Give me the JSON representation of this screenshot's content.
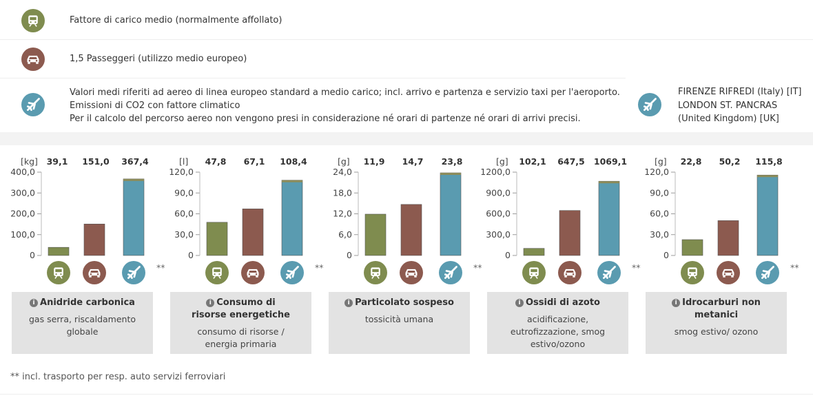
{
  "colors": {
    "train": "#7f8c4f",
    "car": "#8c5a4f",
    "plane": "#5a9bb0",
    "plane_cap": "#8c8c5a"
  },
  "legend": [
    {
      "icon": "train-icon",
      "lines": [
        "Fattore di carico medio (normalmente affollato)"
      ]
    },
    {
      "icon": "car-icon",
      "lines": [
        "1,5 Passeggeri (utilizzo medio europeo)"
      ]
    },
    {
      "icon": "plane-icon",
      "lines": [
        "Valori medi riferiti ad aereo di linea europeo standard a medio carico; incl. arrivo e partenza e servizio taxi per l'aeroporto.",
        "Emissioni di CO2 con fattore climatico",
        "Per il calcolo del percorso aereo non vengono presi in considerazione né orari di partenze né orari di arrivi precisi."
      ]
    }
  ],
  "route": {
    "icon": "plane-icon",
    "lines": [
      "FIRENZE RIFREDI (Italy) [IT]",
      "LONDON ST. PANCRAS",
      "(United Kingdom) [UK]"
    ]
  },
  "double_star": "**",
  "info_icon": "i",
  "chart_data": [
    {
      "type": "bar",
      "unit": "[kg]",
      "categories": [
        "Treno",
        "Auto",
        "Aereo"
      ],
      "values": [
        39.1,
        151.0,
        367.4
      ],
      "value_labels": [
        "39,1",
        "151,0",
        "367,4"
      ],
      "yticks": [
        "0",
        "100,0",
        "200,0",
        "300,0",
        "400,0"
      ],
      "ylim": [
        0,
        400
      ],
      "title": "Anidride carbonica",
      "subtitle": "gas serra, riscaldamento globale"
    },
    {
      "type": "bar",
      "unit": "[l]",
      "categories": [
        "Treno",
        "Auto",
        "Aereo"
      ],
      "values": [
        47.8,
        67.1,
        108.4
      ],
      "value_labels": [
        "47,8",
        "67,1",
        "108,4"
      ],
      "yticks": [
        "0",
        "30,0",
        "60,0",
        "90,0",
        "120,0"
      ],
      "ylim": [
        0,
        120
      ],
      "title": "Consumo di risorse energetiche",
      "subtitle": "consumo di risorse / energia primaria"
    },
    {
      "type": "bar",
      "unit": "[g]",
      "categories": [
        "Treno",
        "Auto",
        "Aereo"
      ],
      "values": [
        11.9,
        14.7,
        23.8
      ],
      "value_labels": [
        "11,9",
        "14,7",
        "23,8"
      ],
      "yticks": [
        "0",
        "6,0",
        "12,0",
        "18,0",
        "24,0"
      ],
      "ylim": [
        0,
        24
      ],
      "title": "Particolato sospeso",
      "subtitle": "tossicità umana"
    },
    {
      "type": "bar",
      "unit": "[g]",
      "categories": [
        "Treno",
        "Auto",
        "Aereo"
      ],
      "values": [
        102.1,
        647.5,
        1069.1
      ],
      "value_labels": [
        "102,1",
        "647,5",
        "1069,1"
      ],
      "yticks": [
        "0",
        "300,0",
        "600,0",
        "900,0",
        "1200,0"
      ],
      "ylim": [
        0,
        1200
      ],
      "title": "Ossidi di azoto",
      "subtitle": "acidificazione, eutrofizzazione, smog estivo/ozono"
    },
    {
      "type": "bar",
      "unit": "[g]",
      "categories": [
        "Treno",
        "Auto",
        "Aereo"
      ],
      "values": [
        22.8,
        50.2,
        115.8
      ],
      "value_labels": [
        "22,8",
        "50,2",
        "115,8"
      ],
      "yticks": [
        "0",
        "30,0",
        "60,0",
        "90,0",
        "120,0"
      ],
      "ylim": [
        0,
        120
      ],
      "title": "Idrocarburi non metanici",
      "subtitle": "smog estivo/ ozono"
    }
  ],
  "footnote": "** incl. trasporto per resp. auto servizi ferroviari"
}
